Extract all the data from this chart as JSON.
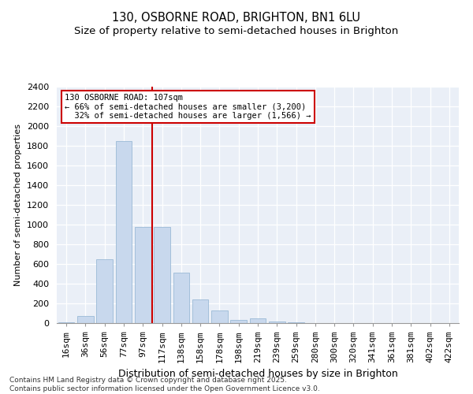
{
  "title1": "130, OSBORNE ROAD, BRIGHTON, BN1 6LU",
  "title2": "Size of property relative to semi-detached houses in Brighton",
  "xlabel": "Distribution of semi-detached houses by size in Brighton",
  "ylabel": "Number of semi-detached properties",
  "footer": "Contains HM Land Registry data © Crown copyright and database right 2025.\nContains public sector information licensed under the Open Government Licence v3.0.",
  "categories": [
    "16sqm",
    "36sqm",
    "56sqm",
    "77sqm",
    "97sqm",
    "117sqm",
    "138sqm",
    "158sqm",
    "178sqm",
    "198sqm",
    "219sqm",
    "239sqm",
    "259sqm",
    "280sqm",
    "300sqm",
    "320sqm",
    "341sqm",
    "361sqm",
    "381sqm",
    "402sqm",
    "422sqm"
  ],
  "values": [
    5,
    70,
    650,
    1850,
    980,
    980,
    510,
    240,
    130,
    30,
    50,
    20,
    10,
    0,
    0,
    0,
    0,
    0,
    0,
    0,
    0
  ],
  "bar_color": "#c8d8ed",
  "bar_edge_color": "#9bbad6",
  "property_sqm": "107sqm",
  "pct_smaller": 66,
  "pct_larger": 32,
  "n_smaller": "3,200",
  "n_larger": "1,566",
  "annotation_box_color": "#ffffff",
  "annotation_box_edge": "#cc0000",
  "line_color": "#cc0000",
  "line_index": 4.5,
  "ylim": [
    0,
    2400
  ],
  "yticks": [
    0,
    200,
    400,
    600,
    800,
    1000,
    1200,
    1400,
    1600,
    1800,
    2000,
    2200,
    2400
  ],
  "bg_color": "#eaeff7",
  "title1_fontsize": 10.5,
  "title2_fontsize": 9.5,
  "tick_fontsize": 8,
  "ylabel_fontsize": 8,
  "xlabel_fontsize": 9,
  "footer_fontsize": 6.5,
  "annot_fontsize": 7.5
}
